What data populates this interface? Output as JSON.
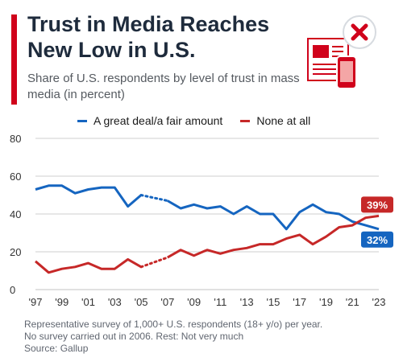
{
  "header": {
    "title": "Trust in Media Reaches New Low in U.S.",
    "subtitle": "Share of U.S. respondents by level of trust in mass media (in percent)",
    "icon": "newspaper-phone-x-icon"
  },
  "footer": {
    "note_line1": "Representative survey of 1,000+ U.S. respondents  (18+ y/o) per year.",
    "note_line2": "No survey carried out in 2006. Rest: Not very much",
    "source": "Source: Gallup"
  },
  "colors": {
    "accent": "#d0021b",
    "blue": "#1565c0",
    "red": "#c62828",
    "grid": "#cfcfcf"
  },
  "chart_data": {
    "type": "line",
    "x": [
      1997,
      1998,
      1999,
      2000,
      2001,
      2002,
      2003,
      2004,
      2005,
      2007,
      2008,
      2009,
      2010,
      2011,
      2012,
      2013,
      2014,
      2015,
      2016,
      2017,
      2018,
      2019,
      2020,
      2021,
      2022,
      2023
    ],
    "x_tick_labels": [
      "'97",
      "'99",
      "'01",
      "'03",
      "'05",
      "'07",
      "'09",
      "'11",
      "'13",
      "'15",
      "'17",
      "'19",
      "'21",
      "'23"
    ],
    "x_tick_years": [
      1997,
      1999,
      2001,
      2003,
      2005,
      2007,
      2009,
      2011,
      2013,
      2015,
      2017,
      2019,
      2021,
      2023
    ],
    "y_ticks": [
      "0",
      "20",
      "40",
      "60",
      "80"
    ],
    "y_tick_values": [
      0,
      20,
      40,
      60,
      80
    ],
    "ylim": [
      0,
      80
    ],
    "xlim": [
      1997,
      2023
    ],
    "gap_between": [
      2005,
      2007
    ],
    "grid": true,
    "legend_placement": "top",
    "series": [
      {
        "name": "A great deal/a fair amount",
        "color": "#1565c0",
        "values": [
          53,
          55,
          55,
          51,
          53,
          54,
          54,
          44,
          50,
          47,
          43,
          45,
          43,
          44,
          40,
          44,
          40,
          40,
          32,
          41,
          45,
          41,
          40,
          36,
          34,
          32
        ],
        "end_label": "32%"
      },
      {
        "name": "None at all",
        "color": "#c62828",
        "values": [
          15,
          9,
          11,
          12,
          14,
          11,
          11,
          16,
          12,
          17,
          21,
          18,
          21,
          19,
          21,
          22,
          24,
          24,
          27,
          29,
          24,
          28,
          33,
          34,
          38,
          39
        ],
        "end_label": "39%"
      }
    ]
  }
}
